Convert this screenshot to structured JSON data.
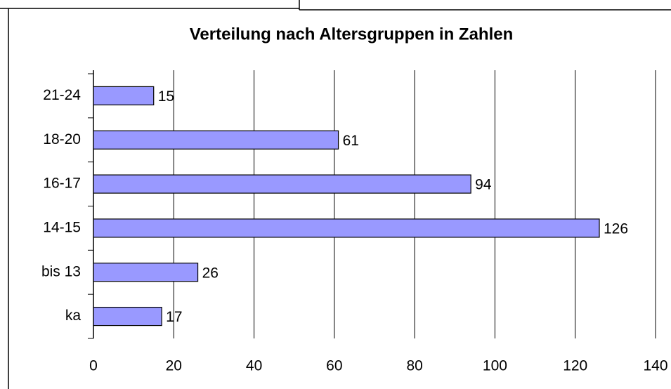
{
  "chart_data": {
    "type": "bar",
    "orientation": "horizontal",
    "title": "Verteilung nach Altersgruppen in Zahlen",
    "categories": [
      "21-24",
      "18-20",
      "16-17",
      "14-15",
      "bis 13",
      "ka"
    ],
    "values": [
      15,
      61,
      94,
      126,
      26,
      17
    ],
    "color": "#9999ff",
    "xlim": [
      0,
      140
    ],
    "xticks": [
      0,
      20,
      40,
      60,
      80,
      100,
      120,
      140
    ],
    "grid": true
  }
}
